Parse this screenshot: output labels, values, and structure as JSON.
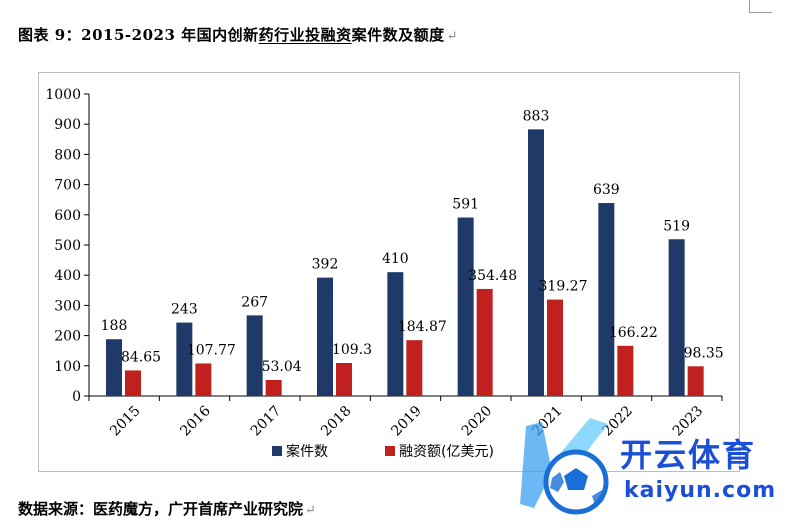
{
  "figure_title": {
    "prefix": "图表 9：2015-2023 年国内创新",
    "underlined": "药行业投融资",
    "suffix": "案件数及额度"
  },
  "return_mark": "↵",
  "source_text": "数据来源：医药魔方，广开首席产业研究院",
  "watermark": {
    "cn": "开云体育",
    "en": "kaiyun.com"
  },
  "colors": {
    "series_cases": "#1f3a68",
    "series_amount": "#c0201e",
    "axis": "#000000"
  },
  "chart_data": {
    "type": "bar",
    "title": "",
    "categories": [
      "2015",
      "2016",
      "2017",
      "2018",
      "2019",
      "2020",
      "2021",
      "2022",
      "2023"
    ],
    "series": [
      {
        "name": "案件数",
        "values": [
          188,
          243,
          267,
          392,
          410,
          591,
          883,
          639,
          519
        ],
        "labels": [
          "188",
          "243",
          "267",
          "392",
          "410",
          "591",
          "883",
          "639",
          "519"
        ]
      },
      {
        "name": "融资额(亿美元)",
        "values": [
          84.65,
          107.77,
          53.04,
          109.3,
          184.87,
          354.48,
          319.27,
          166.22,
          98.35
        ],
        "labels": [
          "84.65",
          "107.77",
          "53.04",
          "109.3",
          "184.87",
          "354.48",
          "319.27",
          "166.22",
          "98.35"
        ]
      }
    ],
    "y_ticks": [
      "0",
      "100",
      "200",
      "300",
      "400",
      "500",
      "600",
      "700",
      "800",
      "900",
      "1000"
    ],
    "ylim": [
      0,
      1000
    ],
    "grid": false,
    "legend_position": "bottom-center",
    "xlabel": "",
    "ylabel": ""
  }
}
